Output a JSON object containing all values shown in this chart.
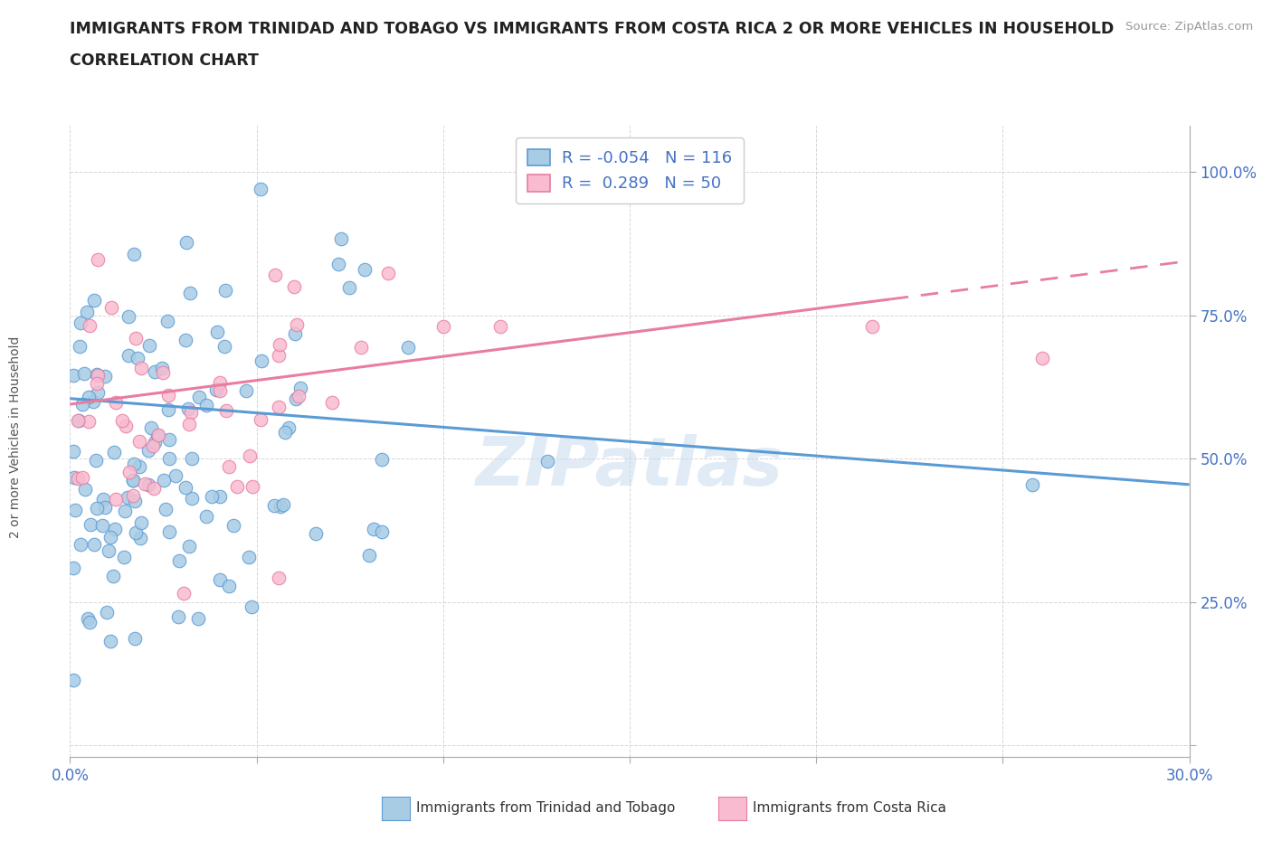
{
  "title_line1": "IMMIGRANTS FROM TRINIDAD AND TOBAGO VS IMMIGRANTS FROM COSTA RICA 2 OR MORE VEHICLES IN HOUSEHOLD",
  "title_line2": "CORRELATION CHART",
  "source_text": "Source: ZipAtlas.com",
  "ylabel": "2 or more Vehicles in Household",
  "legend_label1": "Immigrants from Trinidad and Tobago",
  "legend_label2": "Immigrants from Costa Rica",
  "R1": -0.054,
  "N1": 116,
  "R2": 0.289,
  "N2": 50,
  "xlim": [
    0.0,
    0.3
  ],
  "ylim": [
    -0.02,
    1.08
  ],
  "color_blue": "#a8cce4",
  "color_pink": "#f8bbd0",
  "color_blue_dark": "#5b9bd5",
  "color_pink_dark": "#e87da0",
  "color_axis": "#4472C4",
  "color_grid": "#cccccc",
  "watermark": "ZIPatlas",
  "blue_line_y0": 0.605,
  "blue_line_y1": 0.455,
  "pink_line_y0": 0.595,
  "pink_line_y1": 0.845,
  "pink_line_solid_end": 0.22
}
